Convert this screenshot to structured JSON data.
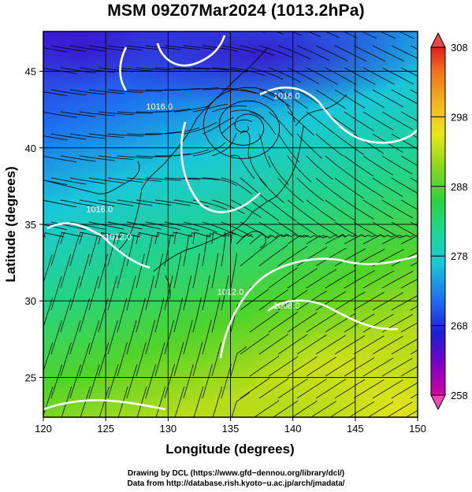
{
  "title": "MSM 09Z07Mar2024 (1013.2hPa)",
  "chart_data": {
    "type": "heatmap",
    "title": "MSM 09Z07Mar2024 (1013.2hPa)",
    "xlabel": "Longitude (degrees)",
    "ylabel": "Latitude  (degrees)",
    "xlim": [
      120,
      150
    ],
    "ylim": [
      22.4,
      47.6
    ],
    "x_ticks": [
      120,
      125,
      130,
      135,
      140,
      145,
      150
    ],
    "y_ticks": [
      25,
      30,
      35,
      40,
      45
    ],
    "grid": true,
    "colorbar": {
      "range": [
        258,
        308
      ],
      "ticks": [
        258,
        268,
        278,
        288,
        298,
        308
      ],
      "stops": [
        "#d6009f",
        "#7a00c8",
        "#1a1ed8",
        "#1f6cf0",
        "#19c8d8",
        "#19d89a",
        "#2bd43c",
        "#8ed81e",
        "#e8e81a",
        "#f5b41e",
        "#f07020",
        "#e02020"
      ]
    },
    "contours": [
      {
        "label": "1016.0",
        "lon": 129.3,
        "lat": 42.5
      },
      {
        "label": "1016.0",
        "lon": 139.5,
        "lat": 43.2
      },
      {
        "label": "1016.0",
        "lon": 124.5,
        "lat": 35.8
      },
      {
        "label": "1012.0",
        "lon": 126.0,
        "lat": 34.0
      },
      {
        "label": "1012.0",
        "lon": 135.0,
        "lat": 30.4
      },
      {
        "label": "1008.0",
        "lon": 139.5,
        "lat": 29.5
      }
    ],
    "low_center": {
      "lon": 136.2,
      "lat": 41.4
    }
  },
  "credits": {
    "line1": "Drawing by DCL (https://www.gfd−dennou.org/library/dcl/)",
    "line2": "Data from http://database.rish.kyoto−u.ac.jp/arch/jmadata/"
  }
}
